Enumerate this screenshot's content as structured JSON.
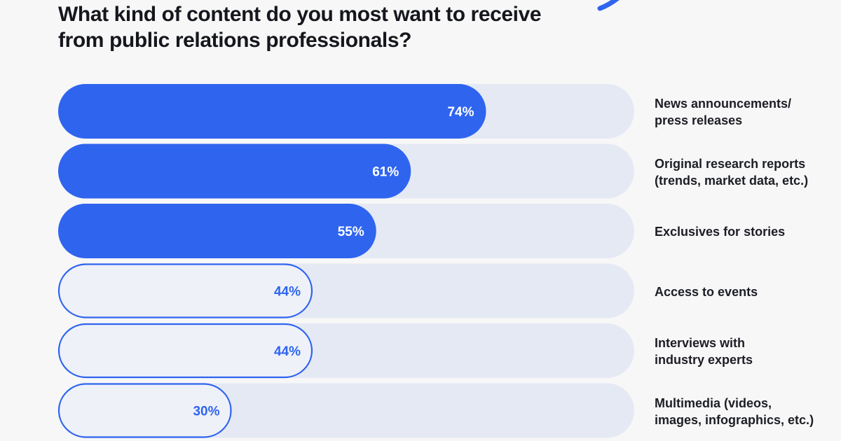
{
  "title_lines": [
    "What kind of content do you most want to receive",
    "from public relations professionals?"
  ],
  "colors": {
    "accent": "#2f64ef",
    "track": "#e5e9f3",
    "outline_fill": "#eef1f8",
    "label_dark": "#1c1e24"
  },
  "chart_data": {
    "type": "bar",
    "orientation": "horizontal",
    "title": "What kind of content do you most want to receive from public relations professionals?",
    "categories": [
      [
        "News announcements/",
        "press releases"
      ],
      [
        "Original research reports",
        "(trends, market data, etc.)"
      ],
      [
        "Exclusives for stories"
      ],
      [
        "Access to events"
      ],
      [
        "Interviews with",
        "industry experts"
      ],
      [
        "Multimedia (videos,",
        "images, infographics, etc.)"
      ]
    ],
    "values": [
      74,
      61,
      55,
      44,
      44,
      30
    ],
    "value_labels": [
      "74%",
      "61%",
      "55%",
      "44%",
      "44%",
      "30%"
    ],
    "styles": [
      "filled",
      "filled",
      "filled",
      "outlined",
      "outlined",
      "outlined"
    ],
    "xlim": [
      0,
      100
    ],
    "unit": "%",
    "legend": "none",
    "grid": false
  }
}
